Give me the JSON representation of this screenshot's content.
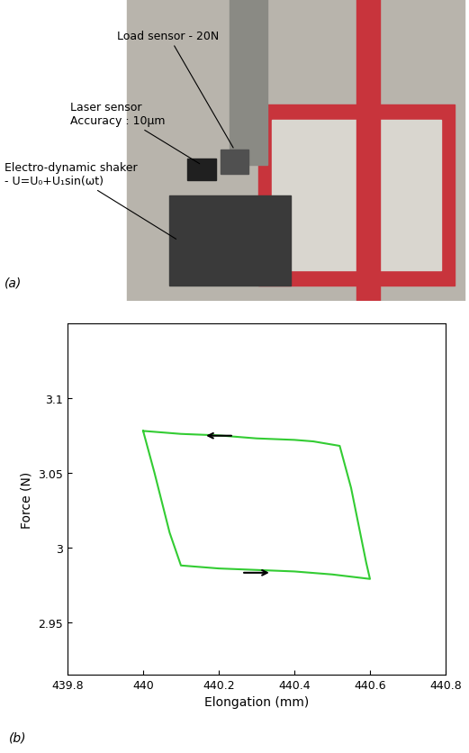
{
  "panel_a": {
    "label": "(a)",
    "annotations": [
      {
        "lines": [
          "Load sensor - 20N"
        ]
      },
      {
        "lines": [
          "Laser sensor",
          "Accuracy : 10µm"
        ]
      },
      {
        "lines": [
          "Electro-dynamic shaker",
          "- U=U₀+U₁sin(ωt)"
        ]
      }
    ]
  },
  "chart_data": {
    "type": "line",
    "panel_label": "(b)",
    "x_label": "Elongation (mm)",
    "y_label": "Force (N)",
    "x": [
      440.0,
      440.03,
      440.07,
      440.1,
      440.2,
      440.3,
      440.4,
      440.5,
      440.6,
      440.59,
      440.55,
      440.52,
      440.45,
      440.4,
      440.3,
      440.2,
      440.1,
      440.0
    ],
    "values": [
      3.078,
      3.05,
      3.01,
      2.988,
      2.986,
      2.985,
      2.984,
      2.982,
      2.979,
      2.99,
      3.04,
      3.068,
      3.071,
      3.072,
      3.073,
      3.075,
      3.076,
      3.078
    ],
    "color": "#33cc33",
    "xlim": [
      439.8,
      440.8
    ],
    "xticks": [
      439.8,
      440,
      440.2,
      440.4,
      440.6,
      440.8
    ],
    "ylim": [
      2.915,
      3.15
    ],
    "yticks": [
      2.95,
      3,
      3.05,
      3.1
    ],
    "grid": false
  }
}
